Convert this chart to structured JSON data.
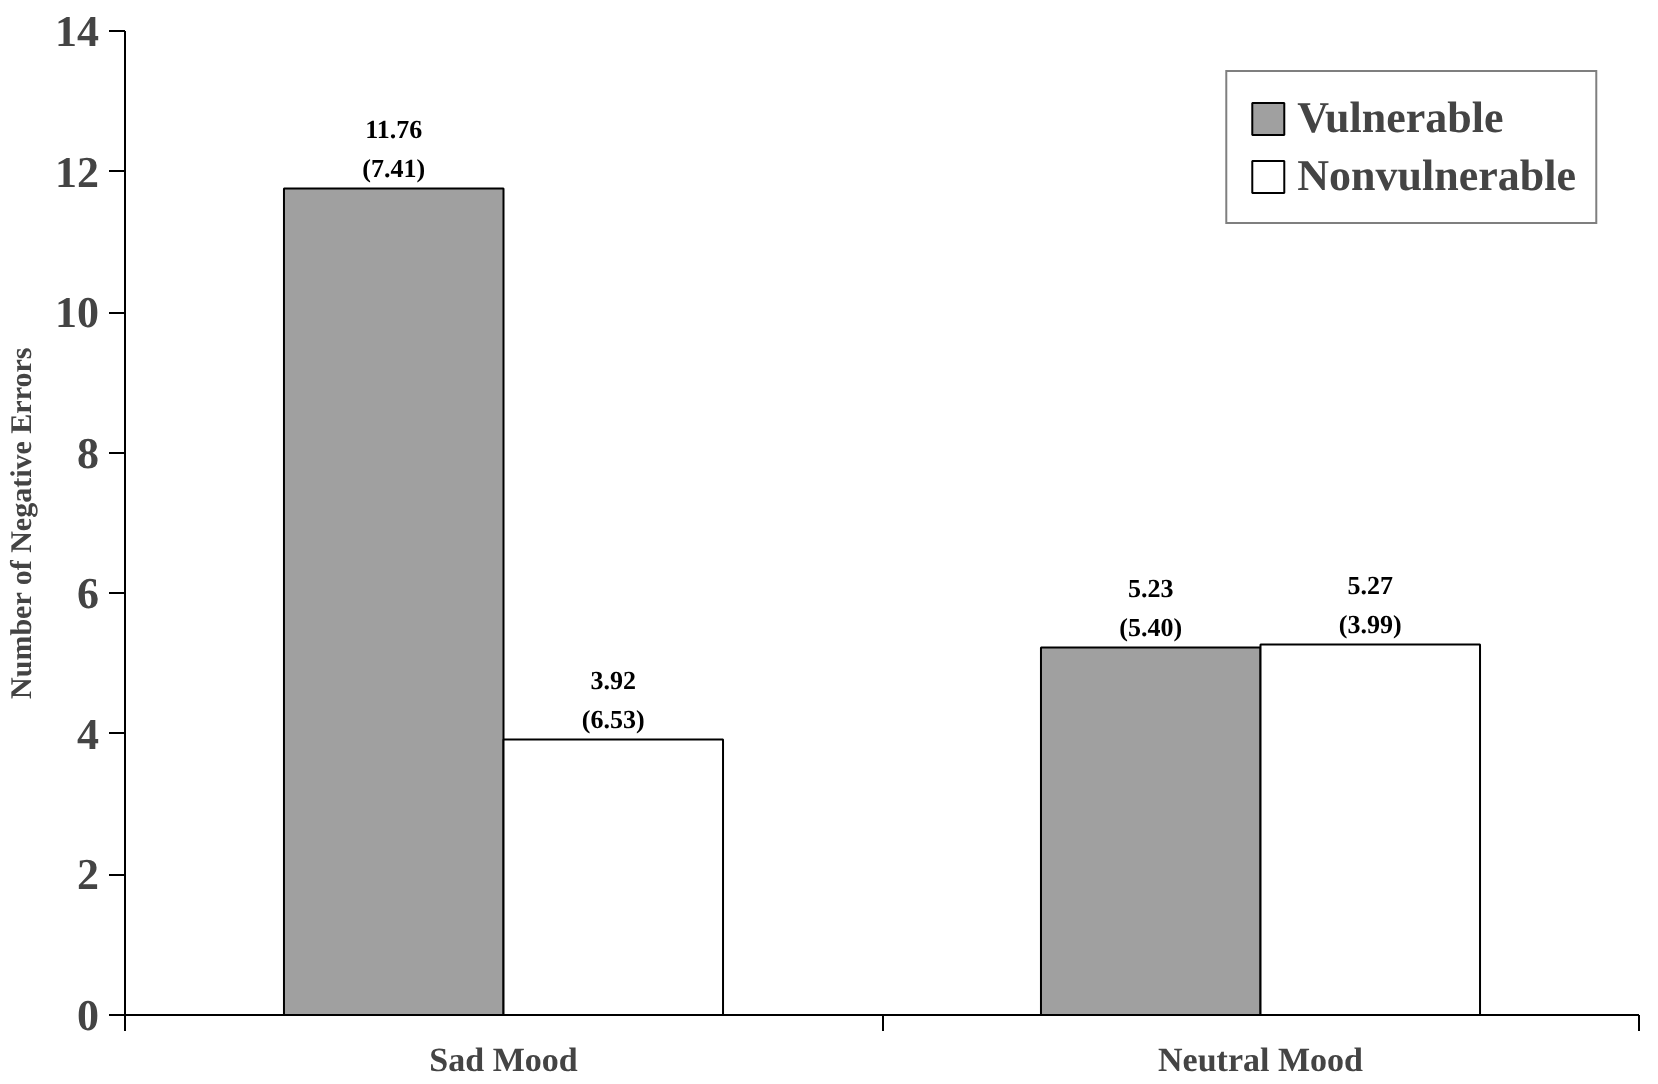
{
  "chart_data": {
    "type": "bar",
    "categories": [
      "Sad Mood",
      "Neutral Mood"
    ],
    "ylabel": "Number of Negative Errors",
    "ylim": [
      0,
      14
    ],
    "yticks": [
      0,
      2,
      4,
      6,
      8,
      10,
      12,
      14
    ],
    "grid": false,
    "legend": "top right",
    "series": [
      {
        "name": "Vulnerable",
        "color": "#a0a0a0",
        "values": [
          11.76,
          5.23
        ],
        "value_labels": [
          "11.76\n(7.41)",
          "5.23\n(5.40)"
        ]
      },
      {
        "name": "Nonvulnerable",
        "color": "#ffffff",
        "values": [
          3.92,
          5.27
        ],
        "value_labels": [
          "3.92\n(6.53)",
          "5.27\n(3.99)"
        ]
      }
    ]
  }
}
